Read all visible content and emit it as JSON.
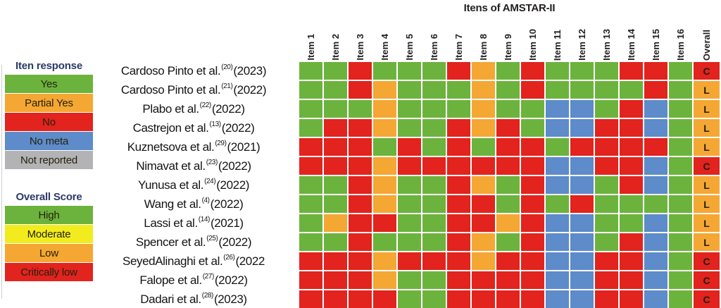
{
  "figure_title": "Itens of AMSTAR-II",
  "colors": {
    "yes": "#6CB33E",
    "partial_yes": "#F5A733",
    "no": "#E2231E",
    "no_meta": "#5E8BC9",
    "not_reported": "#B3B3B5",
    "high": "#6CB33E",
    "moderate": "#F2EC1E",
    "low": "#F5A733",
    "critically_low": "#E2231E"
  },
  "legends": {
    "item_response": {
      "title": "Iten response",
      "items": [
        {
          "label": "Yes",
          "color_key": "yes"
        },
        {
          "label": "Partial Yes",
          "color_key": "partial_yes"
        },
        {
          "label": "No",
          "color_key": "no"
        },
        {
          "label": "No meta",
          "color_key": "no_meta"
        },
        {
          "label": "Not reported",
          "color_key": "not_reported"
        }
      ]
    },
    "overall_score": {
      "title": "Overall Score",
      "items": [
        {
          "label": "High",
          "color_key": "high"
        },
        {
          "label": "Moderate",
          "color_key": "moderate"
        },
        {
          "label": "Low",
          "color_key": "low"
        },
        {
          "label": "Critically low",
          "color_key": "critically_low"
        }
      ]
    }
  },
  "chart_data": {
    "type": "heatmap",
    "title": "Itens of AMSTAR-II",
    "columns": [
      "Item 1",
      "Item 2",
      "Item 3",
      "Item 4",
      "Item 5",
      "Item 6",
      "Item 7",
      "Item 8",
      "Item 9",
      "Item 10",
      "Item 11",
      "Item 12",
      "Item 13",
      "Item 14",
      "Item 15",
      "Item 16",
      "Overall"
    ],
    "cell_legend": {
      "Y": "Yes",
      "PY": "Partial Yes",
      "N": "No",
      "NM": "No meta",
      "NR": "Not reported"
    },
    "overall_legend": {
      "H": "High",
      "M": "Moderate",
      "L": "Low",
      "C": "Critically low"
    },
    "cell_color_keys": {
      "Y": "yes",
      "PY": "partial_yes",
      "N": "no",
      "NM": "no_meta",
      "NR": "not_reported"
    },
    "overall_color_keys": {
      "H": "high",
      "M": "moderate",
      "L": "low",
      "C": "critically_low"
    },
    "rows": [
      {
        "study": "Cardoso Pinto et al.",
        "ref": "(20)",
        "year": "(2023)",
        "items": [
          "Y",
          "Y",
          "N",
          "Y",
          "Y",
          "Y",
          "N",
          "PY",
          "Y",
          "N",
          "Y",
          "Y",
          "Y",
          "N",
          "N",
          "Y"
        ],
        "overall": "C"
      },
      {
        "study": "Cardoso Pinto et al.",
        "ref": "(21)",
        "year": "(2022)",
        "items": [
          "Y",
          "Y",
          "N",
          "PY",
          "Y",
          "Y",
          "Y",
          "PY",
          "Y",
          "N",
          "Y",
          "Y",
          "Y",
          "Y",
          "N",
          "Y"
        ],
        "overall": "L"
      },
      {
        "study": "Plabo et al.",
        "ref": "(22)",
        "year": "(2022)",
        "items": [
          "Y",
          "Y",
          "Y",
          "PY",
          "Y",
          "Y",
          "Y",
          "PY",
          "Y",
          "Y",
          "NM",
          "NM",
          "Y",
          "N",
          "NM",
          "Y"
        ],
        "overall": "L"
      },
      {
        "study": "Castrejon et al.",
        "ref": "(13)",
        "year": "(2022)",
        "items": [
          "Y",
          "N",
          "N",
          "PY",
          "Y",
          "Y",
          "N",
          "PY",
          "N",
          "Y",
          "NM",
          "NM",
          "N",
          "N",
          "NM",
          "Y"
        ],
        "overall": "L"
      },
      {
        "study": "Kuznetsova et al.",
        "ref": "(29)",
        "year": "(2021)",
        "items": [
          "N",
          "N",
          "N",
          "Y",
          "N",
          "Y",
          "N",
          "Y",
          "N",
          "N",
          "Y",
          "N",
          "N",
          "N",
          "N",
          "Y"
        ],
        "overall": "L"
      },
      {
        "study": "Nimavat et al.",
        "ref": "(23)",
        "year": "(2022)",
        "items": [
          "N",
          "N",
          "N",
          "PY",
          "N",
          "N",
          "N",
          "N",
          "N",
          "N",
          "NM",
          "NM",
          "N",
          "N",
          "NM",
          "Y"
        ],
        "overall": "C"
      },
      {
        "study": "Yunusa et al.",
        "ref": "(24)",
        "year": "(2022)",
        "items": [
          "Y",
          "Y",
          "N",
          "PY",
          "Y",
          "Y",
          "N",
          "PY",
          "Y",
          "N",
          "NM",
          "NM",
          "Y",
          "N",
          "NM",
          "Y"
        ],
        "overall": "L"
      },
      {
        "study": "Wang et al.",
        "ref": "(4)",
        "year": "(2022)",
        "items": [
          "Y",
          "Y",
          "N",
          "PY",
          "Y",
          "Y",
          "N",
          "N",
          "Y",
          "N",
          "Y",
          "N",
          "Y",
          "Y",
          "Y",
          "Y"
        ],
        "overall": "L"
      },
      {
        "study": "Lassi et al.",
        "ref": "(14)",
        "year": "(2021)",
        "items": [
          "Y",
          "PY",
          "N",
          "N",
          "Y",
          "Y",
          "N",
          "N",
          "PY",
          "N",
          "NM",
          "NM",
          "Y",
          "Y",
          "NM",
          "Y"
        ],
        "overall": "L"
      },
      {
        "study": "Spencer et al.",
        "ref": "(25)",
        "year": "(2022)",
        "items": [
          "Y",
          "Y",
          "N",
          "Y",
          "Y",
          "Y",
          "N",
          "PY",
          "Y",
          "N",
          "NM",
          "NM",
          "Y",
          "N",
          "NM",
          "Y"
        ],
        "overall": "L"
      },
      {
        "study": "SeyedAlinaghi et al.",
        "ref": "(26)",
        "year": "(2022",
        "items": [
          "N",
          "N",
          "N",
          "PY",
          "N",
          "N",
          "N",
          "PY",
          "N",
          "N",
          "NM",
          "NM",
          "N",
          "N",
          "NM",
          "Y"
        ],
        "overall": "C"
      },
      {
        "study": "Falope et al.",
        "ref": "(27)",
        "year": "(2022)",
        "items": [
          "N",
          "N",
          "N",
          "PY",
          "Y",
          "Y",
          "N",
          "N",
          "N",
          "N",
          "NM",
          "NM",
          "N",
          "N",
          "NM",
          "Y"
        ],
        "overall": "C"
      },
      {
        "study": "Dadari et al.",
        "ref": "(28)",
        "year": "(2023)",
        "items": [
          "N",
          "N",
          "N",
          "N",
          "Y",
          "Y",
          "N",
          "N",
          "N",
          "N",
          "NM",
          "NM",
          "N",
          "N",
          "NM",
          "Y"
        ],
        "overall": "C"
      }
    ]
  }
}
